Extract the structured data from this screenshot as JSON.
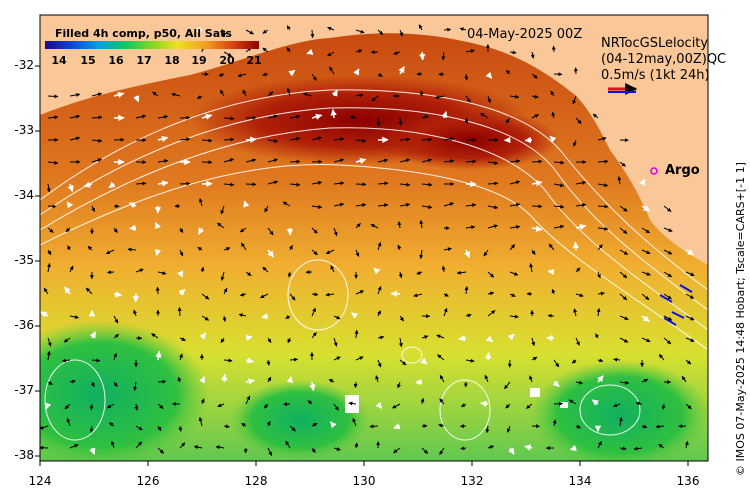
{
  "colorbar": {
    "title": "Filled 4h comp, p50, All Sats",
    "ticks": [
      "14",
      "15",
      "16",
      "17",
      "18",
      "19",
      "20",
      "21"
    ],
    "colors": [
      "#1a0a8c",
      "#1040d8",
      "#00a0e0",
      "#10c860",
      "#80d820",
      "#f0e020",
      "#f0a020",
      "#d84010",
      "#8c0000"
    ]
  },
  "map": {
    "date_label": "04-May-2025 00Z",
    "velocity_legend": {
      "overlap_line1": "NRTocGSLelocity",
      "overlap_line2": "(04-12may,00Z)QC",
      "scale": "0.5m/s (1kt 24h)"
    },
    "argo_label": "Argo",
    "lat_labels": [
      "-32",
      "-33",
      "-34",
      "-35",
      "-36",
      "-37",
      "-38"
    ],
    "lon_labels": [
      "124",
      "126",
      "128",
      "130",
      "132",
      "134",
      "136"
    ],
    "land_color": "#fac898"
  },
  "credit": "© IMOS 07-May-2025 14:48 Hobart; Tscale=CARS+[-1 1]"
}
